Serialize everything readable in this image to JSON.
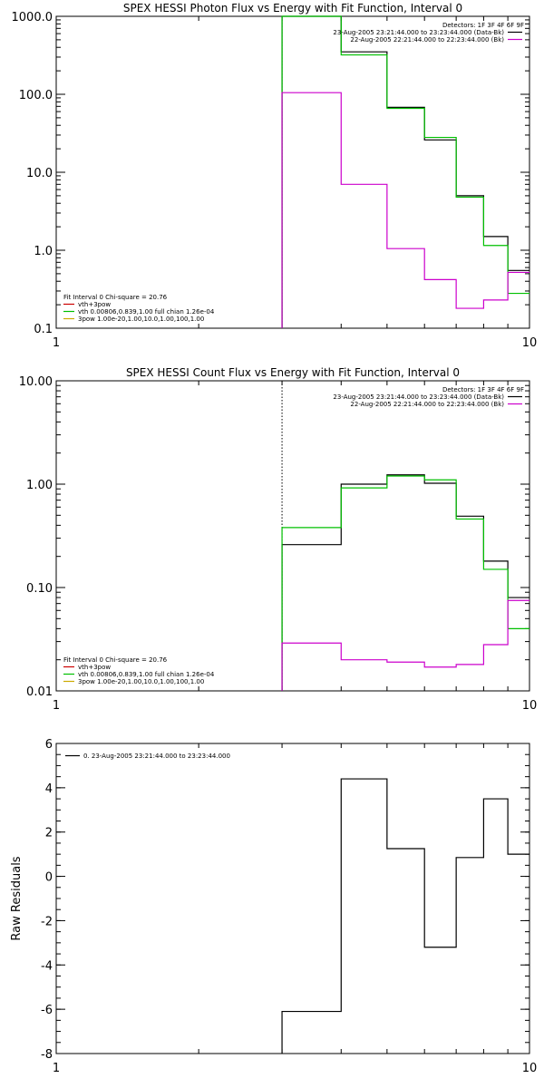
{
  "chart_data": [
    {
      "type": "line",
      "title": "SPEX HESSI Photon Flux vs Energy with Fit Function, Interval 0",
      "xlabel": "",
      "ylabel": "",
      "x_scale": "log",
      "y_scale": "log",
      "xlim": [
        1,
        10
      ],
      "ylim": [
        0.1,
        1000
      ],
      "x_ticks": [
        {
          "v": 1,
          "label": "1"
        },
        {
          "v": 10,
          "label": "10"
        }
      ],
      "y_ticks": [
        {
          "v": 0.1,
          "label": "0.1"
        },
        {
          "v": 1,
          "label": "1.0"
        },
        {
          "v": 10,
          "label": "10.0"
        },
        {
          "v": 100,
          "label": "100.0"
        },
        {
          "v": 1000,
          "label": "1000.0"
        }
      ],
      "vline": {
        "x": 3.0,
        "color": "#00c000",
        "dashed": true
      },
      "info_lines": [
        {
          "text": "Detectors: 1F 3F 4F 6F 9F",
          "color": ""
        },
        {
          "text": "23-Aug-2005 23:21:44.000 to 23:23:44.000 (Data-Bk)",
          "color": "#000000"
        },
        {
          "text": "22-Aug-2005 22:21:44.000 to 22:23:44.000 (Bk)",
          "color": "#cc00cc"
        }
      ],
      "fit_lines": [
        {
          "text": "Fit Interval 0   Chi-square = 20.76",
          "color": ""
        },
        {
          "text": "vth+3pow",
          "color": "#cc0000"
        },
        {
          "text": "vth 0.00806,0.839,1.00  full chian 1.26e-04",
          "color": "#00c000"
        },
        {
          "text": "3pow 1.00e-20,1.00,10.0,1.00,100,1.00",
          "color": "#ccaa00"
        }
      ],
      "edges": [
        3.0,
        3.5,
        4.0,
        4.5,
        5.0,
        5.5,
        6.0,
        6.5,
        7.0,
        7.5,
        8.0,
        8.5,
        9.0,
        10.0
      ],
      "series": [
        {
          "color": "#000000",
          "values": [
            1000,
            1000,
            350,
            350,
            68,
            68,
            26,
            26,
            5.0,
            5.0,
            1.5,
            1.5,
            0.55
          ]
        },
        {
          "color": "#00c000",
          "values": [
            1000,
            1000,
            320,
            320,
            66,
            66,
            28,
            28,
            4.8,
            4.8,
            1.15,
            1.15,
            0.28
          ]
        },
        {
          "color": "#cc00cc",
          "values": [
            105,
            105,
            7.0,
            7.0,
            1.05,
            1.05,
            0.42,
            0.42,
            0.18,
            0.18,
            0.23,
            0.23,
            0.52
          ]
        }
      ]
    },
    {
      "type": "line",
      "title": "SPEX HESSI Count Flux vs Energy with Fit Function, Interval 0",
      "xlabel": "",
      "ylabel": "",
      "x_scale": "log",
      "y_scale": "log",
      "xlim": [
        1,
        10
      ],
      "ylim": [
        0.01,
        10
      ],
      "x_ticks": [
        {
          "v": 1,
          "label": "1"
        },
        {
          "v": 10,
          "label": "10"
        }
      ],
      "y_ticks": [
        {
          "v": 0.01,
          "label": "0.01"
        },
        {
          "v": 0.1,
          "label": "0.10"
        },
        {
          "v": 1,
          "label": "1.00"
        },
        {
          "v": 10,
          "label": "10.00"
        }
      ],
      "vline": {
        "x": 3.0,
        "color": "#000000",
        "dashed": true
      },
      "info_lines": [
        {
          "text": "Detectors: 1F 3F 4F 6F 9F",
          "color": ""
        },
        {
          "text": "23-Aug-2005 23:21:44.000 to 23:23:44.000 (Data-Bk)",
          "color": "#000000"
        },
        {
          "text": "22-Aug-2005 22:21:44.000 to 22:23:44.000 (Bk)",
          "color": "#cc00cc"
        }
      ],
      "fit_lines": [
        {
          "text": "Fit Interval 0   Chi-square = 20.76",
          "color": ""
        },
        {
          "text": "vth+3pow",
          "color": "#cc0000"
        },
        {
          "text": "vth 0.00806,0.839,1.00  full chian 1.26e-04",
          "color": "#00c000"
        },
        {
          "text": "3pow 1.00e-20,1.00,10.0,1.00,100,1.00",
          "color": "#ccaa00"
        }
      ],
      "edges": [
        3.0,
        3.5,
        4.0,
        4.5,
        5.0,
        5.5,
        6.0,
        6.5,
        7.0,
        7.5,
        8.0,
        8.5,
        9.0,
        10.0
      ],
      "series": [
        {
          "color": "#000000",
          "values": [
            0.26,
            0.26,
            1.0,
            1.0,
            1.23,
            1.23,
            1.02,
            1.02,
            0.49,
            0.49,
            0.18,
            0.18,
            0.08
          ]
        },
        {
          "color": "#00c000",
          "values": [
            0.38,
            0.38,
            0.92,
            0.92,
            1.2,
            1.2,
            1.1,
            1.1,
            0.46,
            0.46,
            0.15,
            0.15,
            0.04
          ]
        },
        {
          "color": "#cc00cc",
          "values": [
            0.029,
            0.029,
            0.02,
            0.02,
            0.019,
            0.019,
            0.017,
            0.017,
            0.018,
            0.018,
            0.028,
            0.028,
            0.075
          ]
        }
      ]
    },
    {
      "type": "line",
      "title": "",
      "xlabel": "",
      "ylabel": "Raw Residuals",
      "x_scale": "log",
      "y_scale": "linear",
      "xlim": [
        1,
        10
      ],
      "ylim": [
        -8,
        6
      ],
      "x_ticks": [
        {
          "v": 1,
          "label": "1"
        },
        {
          "v": 10,
          "label": "10"
        }
      ],
      "y_ticks": [
        {
          "v": -8,
          "label": "-8"
        },
        {
          "v": -6,
          "label": "-6"
        },
        {
          "v": -4,
          "label": "-4"
        },
        {
          "v": -2,
          "label": "-2"
        },
        {
          "v": 0,
          "label": "0"
        },
        {
          "v": 2,
          "label": "2"
        },
        {
          "v": 4,
          "label": "4"
        },
        {
          "v": 6,
          "label": "6"
        }
      ],
      "legend": {
        "text": "0. 23-Aug-2005 23:21:44.000 to 23:23:44.000",
        "color": "#000000",
        "position": "top-left"
      },
      "edges": [
        3.0,
        3.5,
        4.0,
        4.5,
        5.0,
        5.5,
        6.0,
        6.5,
        7.0,
        7.5,
        8.0,
        8.5,
        9.0,
        10.0
      ],
      "series": [
        {
          "color": "#000000",
          "values": [
            -6.1,
            -6.1,
            4.4,
            4.4,
            1.25,
            1.25,
            -3.2,
            -3.2,
            0.85,
            0.85,
            3.5,
            3.5,
            1.0
          ]
        }
      ]
    }
  ]
}
